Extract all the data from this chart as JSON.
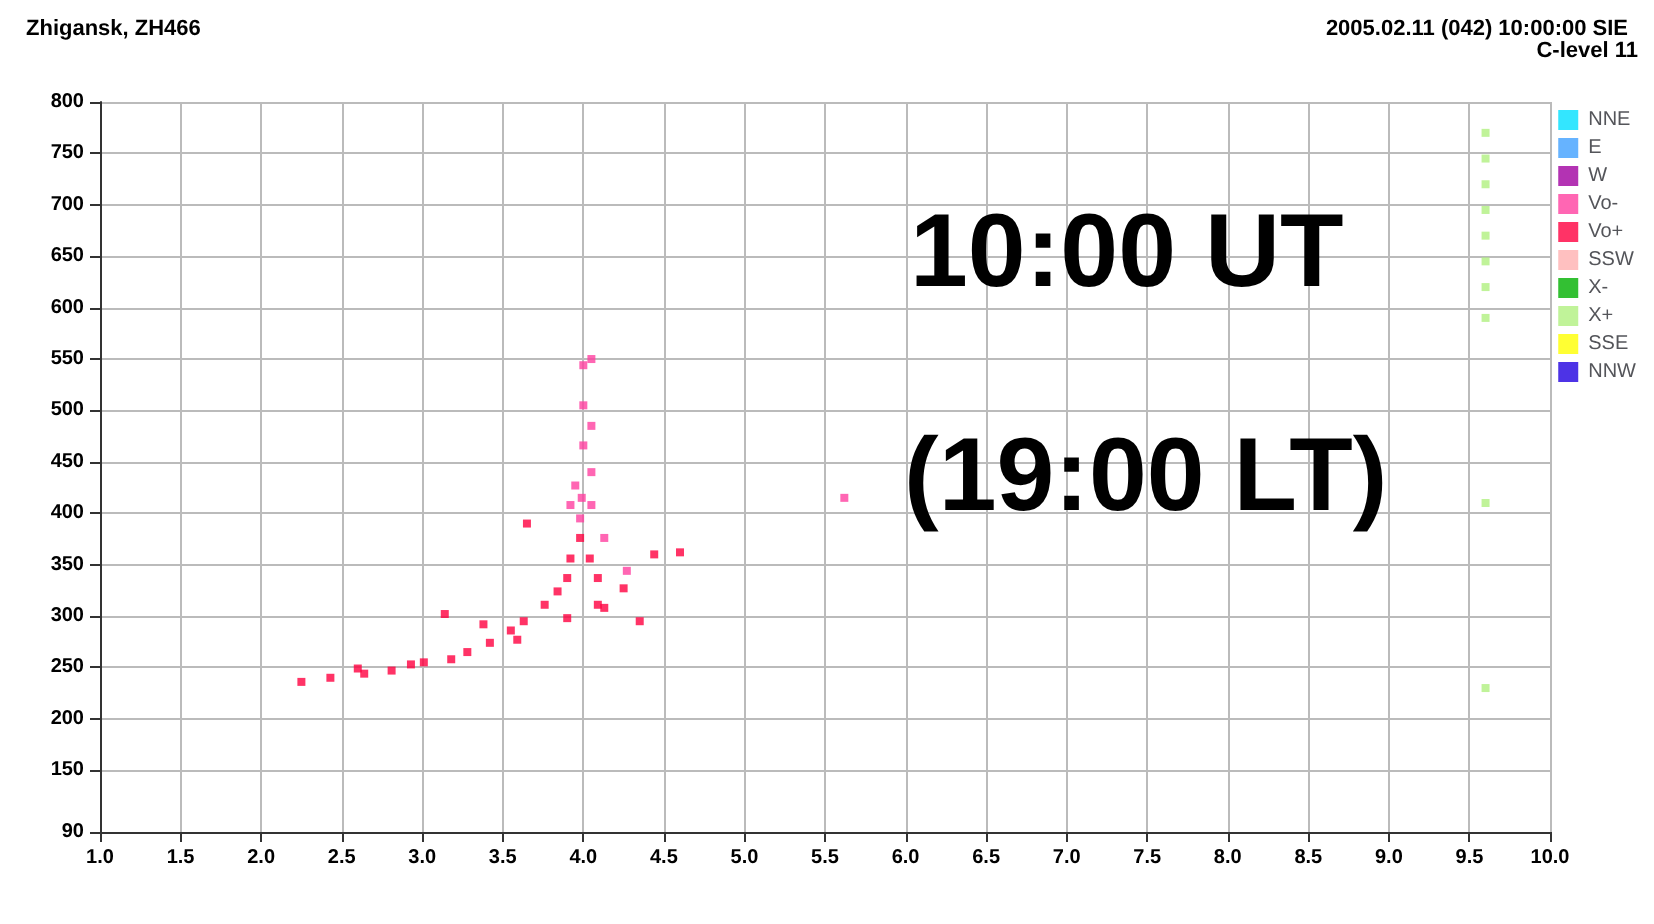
{
  "chart_data": {
    "type": "scatter",
    "title": "Zhigansk, ZH466",
    "subtitle": "2005.02.11 (042) 10:00:00 SIE",
    "annotations": [
      "C-level 11",
      "10:00 UT",
      "(19:00 LT)"
    ],
    "xlim": [
      1,
      10
    ],
    "xticks": [
      {
        "value": 1,
        "label": "1.0"
      },
      {
        "value": 1.5,
        "label": "1.5"
      },
      {
        "value": 2,
        "label": "2.0"
      },
      {
        "value": 2.5,
        "label": "2.5"
      },
      {
        "value": 3,
        "label": "3.0"
      },
      {
        "value": 3.5,
        "label": "3.5"
      },
      {
        "value": 4,
        "label": "4.0"
      },
      {
        "value": 4.5,
        "label": "4.5"
      },
      {
        "value": 5,
        "label": "5.0"
      },
      {
        "value": 5.5,
        "label": "5.5"
      },
      {
        "value": 6,
        "label": "6.0"
      },
      {
        "value": 6.5,
        "label": "6.5"
      },
      {
        "value": 7,
        "label": "7.0"
      },
      {
        "value": 7.5,
        "label": "7.5"
      },
      {
        "value": 8,
        "label": "8.0"
      },
      {
        "value": 8.5,
        "label": "8.5"
      },
      {
        "value": 9,
        "label": "9.0"
      },
      {
        "value": 9.5,
        "label": "9.5"
      },
      {
        "value": 10,
        "label": "10.0"
      }
    ],
    "ylim": [
      90,
      800
    ],
    "yticks": [
      90,
      150,
      200,
      250,
      300,
      350,
      400,
      450,
      500,
      550,
      600,
      650,
      700,
      750,
      800
    ],
    "grid": true,
    "legend": "right",
    "marker": "square",
    "series": [
      {
        "name": "NNE",
        "color": "#00e0ff"
      },
      {
        "name": "E",
        "color": "#40a0ff"
      },
      {
        "name": "W",
        "color": "#a000a0"
      },
      {
        "name": "Vo-",
        "color": "#ff40a0",
        "x": [
          4.0,
          4.05,
          4.0,
          4.05,
          4.0,
          4.05,
          3.95,
          3.99,
          4.05,
          3.98,
          3.92,
          4.13,
          4.27,
          5.62
        ],
        "values": [
          544,
          550,
          505,
          485,
          466,
          440,
          427,
          415,
          408,
          395,
          408,
          376,
          344,
          415
        ]
      },
      {
        "name": "Vo+",
        "color": "#ff0040",
        "x": [
          2.25,
          2.43,
          2.6,
          2.64,
          2.81,
          2.93,
          3.01,
          3.18,
          3.28,
          3.42,
          3.55,
          3.63,
          3.76,
          3.84,
          3.9,
          3.92,
          3.98,
          3.9,
          4.09,
          4.25,
          4.44,
          4.6,
          3.65,
          4.04,
          4.13,
          4.35,
          3.14,
          3.38,
          3.59,
          4.09
        ],
        "values": [
          236,
          240,
          249,
          244,
          247,
          253,
          255,
          258,
          265,
          274,
          286,
          295,
          311,
          324,
          337,
          356,
          376,
          298,
          311,
          327,
          360,
          362,
          390,
          356,
          308,
          295,
          302,
          292,
          277,
          337
        ]
      },
      {
        "name": "SSW",
        "color": "#ffb0b0"
      },
      {
        "name": "X-",
        "color": "#00b000"
      },
      {
        "name": "X+",
        "color": "#b0f080",
        "x": [
          9.6,
          9.6,
          9.6,
          9.6,
          9.6,
          9.6,
          9.6,
          9.6,
          9.6,
          9.6
        ],
        "values": [
          770,
          745,
          720,
          695,
          670,
          645,
          620,
          590,
          410,
          230
        ]
      },
      {
        "name": "SSE",
        "color": "#ffff00"
      },
      {
        "name": "NNW",
        "color": "#2000e0"
      }
    ]
  }
}
